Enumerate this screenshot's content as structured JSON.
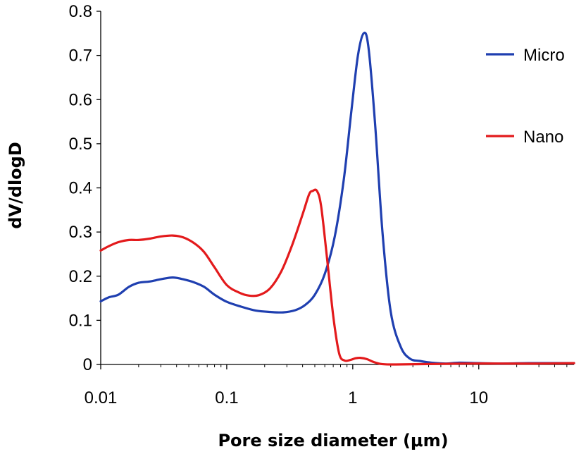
{
  "chart_data": {
    "type": "line",
    "title": "",
    "xlabel": "Pore size diameter (μm)",
    "ylabel": "dV/dlogD",
    "xscale": "log",
    "xlim": [
      0.01,
      57
    ],
    "ylim": [
      0,
      0.8
    ],
    "xticks": [
      0.01,
      0.1,
      1,
      10
    ],
    "xtick_labels": [
      "0.01",
      "0.1",
      "1",
      "10"
    ],
    "yticks": [
      0,
      0.1,
      0.2,
      0.3,
      0.4,
      0.5,
      0.6,
      0.7,
      0.8
    ],
    "ytick_labels": [
      "0",
      "0.1",
      "0.2",
      "0.3",
      "0.4",
      "0.5",
      "0.6",
      "0.7",
      "0.8"
    ],
    "grid": false,
    "legend_position": "top-right",
    "series": [
      {
        "name": "Micro",
        "color": "#1f3fb0",
        "points": [
          [
            0.01,
            0.143
          ],
          [
            0.0116,
            0.152
          ],
          [
            0.0138,
            0.158
          ],
          [
            0.0168,
            0.176
          ],
          [
            0.02,
            0.185
          ],
          [
            0.0245,
            0.188
          ],
          [
            0.03,
            0.193
          ],
          [
            0.0373,
            0.197
          ],
          [
            0.045,
            0.193
          ],
          [
            0.055,
            0.186
          ],
          [
            0.066,
            0.176
          ],
          [
            0.08,
            0.158
          ],
          [
            0.1,
            0.142
          ],
          [
            0.13,
            0.131
          ],
          [
            0.17,
            0.122
          ],
          [
            0.22,
            0.119
          ],
          [
            0.28,
            0.118
          ],
          [
            0.35,
            0.123
          ],
          [
            0.42,
            0.135
          ],
          [
            0.5,
            0.158
          ],
          [
            0.6,
            0.205
          ],
          [
            0.72,
            0.29
          ],
          [
            0.85,
            0.42
          ],
          [
            0.98,
            0.58
          ],
          [
            1.1,
            0.7
          ],
          [
            1.22,
            0.75
          ],
          [
            1.33,
            0.72
          ],
          [
            1.5,
            0.55
          ],
          [
            1.72,
            0.3
          ],
          [
            2.0,
            0.12
          ],
          [
            2.4,
            0.04
          ],
          [
            2.85,
            0.013
          ],
          [
            3.4,
            0.008
          ],
          [
            4.2,
            0.004
          ],
          [
            5.5,
            0.002
          ],
          [
            7,
            0.004
          ],
          [
            10,
            0.003
          ],
          [
            15,
            0.002
          ],
          [
            25,
            0.003
          ],
          [
            40,
            0.003
          ],
          [
            57,
            0.003
          ]
        ]
      },
      {
        "name": "Nano",
        "color": "#e31a1c",
        "points": [
          [
            0.01,
            0.258
          ],
          [
            0.0116,
            0.268
          ],
          [
            0.0138,
            0.277
          ],
          [
            0.0168,
            0.282
          ],
          [
            0.02,
            0.282
          ],
          [
            0.0245,
            0.285
          ],
          [
            0.03,
            0.29
          ],
          [
            0.0373,
            0.292
          ],
          [
            0.045,
            0.288
          ],
          [
            0.055,
            0.275
          ],
          [
            0.066,
            0.255
          ],
          [
            0.08,
            0.22
          ],
          [
            0.1,
            0.18
          ],
          [
            0.125,
            0.163
          ],
          [
            0.15,
            0.156
          ],
          [
            0.18,
            0.157
          ],
          [
            0.22,
            0.172
          ],
          [
            0.27,
            0.21
          ],
          [
            0.33,
            0.27
          ],
          [
            0.4,
            0.34
          ],
          [
            0.45,
            0.385
          ],
          [
            0.48,
            0.393
          ],
          [
            0.52,
            0.393
          ],
          [
            0.56,
            0.36
          ],
          [
            0.62,
            0.25
          ],
          [
            0.7,
            0.11
          ],
          [
            0.78,
            0.025
          ],
          [
            0.86,
            0.009
          ],
          [
            0.95,
            0.01
          ],
          [
            1.05,
            0.014
          ],
          [
            1.15,
            0.015
          ],
          [
            1.3,
            0.012
          ],
          [
            1.45,
            0.006
          ],
          [
            1.7,
            0.001
          ],
          [
            2.2,
            0.0
          ],
          [
            4,
            0.001
          ],
          [
            8,
            0.002
          ],
          [
            15,
            0.002
          ],
          [
            30,
            0.002
          ],
          [
            57,
            0.003
          ]
        ]
      }
    ]
  }
}
